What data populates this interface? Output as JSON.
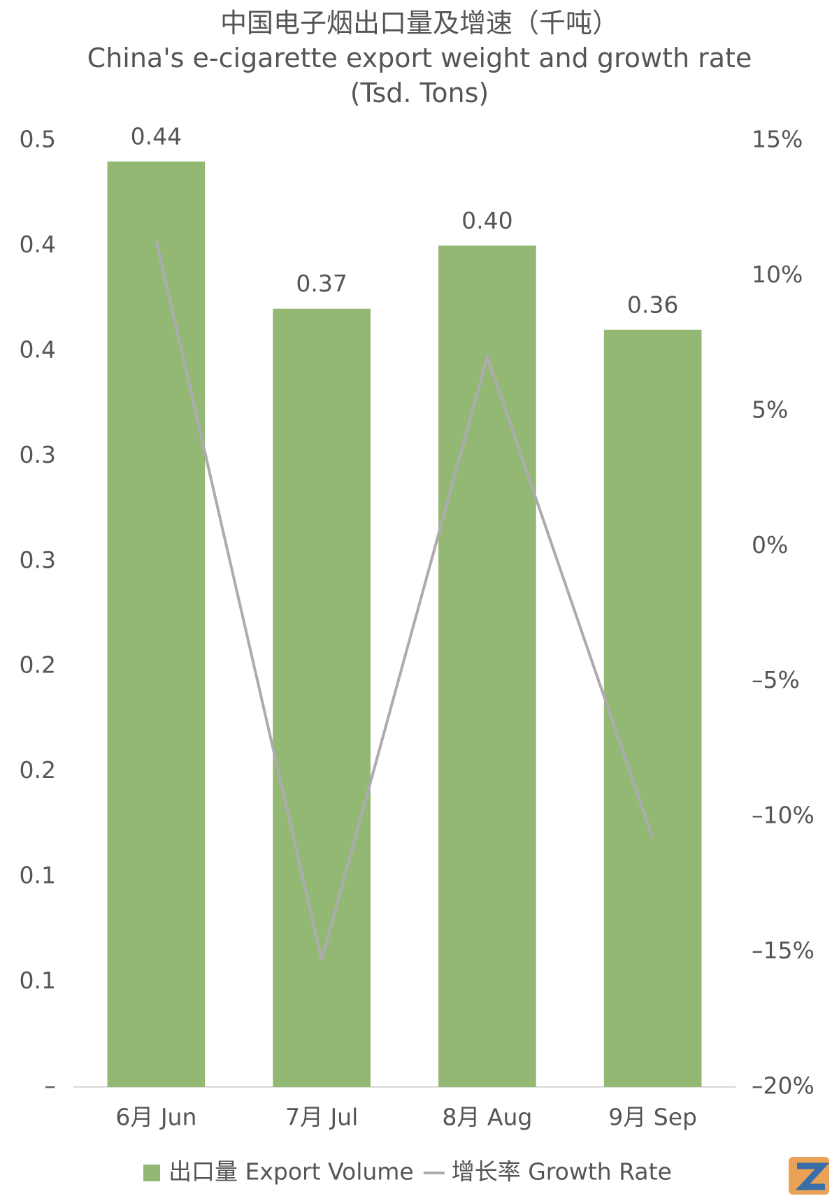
{
  "chart_data": {
    "type": "bar",
    "title": "中国电子烟出口量及增速（千吨）",
    "subtitle": "China's e-cigarette export weight and growth rate (Tsd. Tons)",
    "categories": [
      "6月 Jun",
      "7月 Jul",
      "8月 Aug",
      "9月 Sep"
    ],
    "series": [
      {
        "name": "出口量 Export Volume",
        "type": "bar",
        "color": "#93b874",
        "values": [
          0.44,
          0.37,
          0.4,
          0.36
        ],
        "value_labels": [
          "0.44",
          "0.37",
          "0.40",
          "0.36"
        ]
      },
      {
        "name": "增长率 Growth Rate",
        "type": "line",
        "axis": "y2",
        "color": "#aeaaaf",
        "values": [
          11.3,
          -15.3,
          7.0,
          -10.8
        ]
      }
    ],
    "ylim": [
      0,
      0.45
    ],
    "yticks": [
      {
        "value": 0,
        "label": "–"
      },
      {
        "value": 0.05,
        "label": "0.1"
      },
      {
        "value": 0.1,
        "label": "0.1"
      },
      {
        "value": 0.15,
        "label": "0.2"
      },
      {
        "value": 0.2,
        "label": "0.2"
      },
      {
        "value": 0.25,
        "label": "0.3"
      },
      {
        "value": 0.3,
        "label": "0.3"
      },
      {
        "value": 0.35,
        "label": "0.4"
      },
      {
        "value": 0.4,
        "label": "0.4"
      },
      {
        "value": 0.45,
        "label": "0.5"
      }
    ],
    "y2lim": [
      -20,
      15
    ],
    "y2ticks": [
      {
        "value": -20,
        "label": "–20%"
      },
      {
        "value": -15,
        "label": "–15%"
      },
      {
        "value": -10,
        "label": "–10%"
      },
      {
        "value": -5,
        "label": "–5%"
      },
      {
        "value": 0,
        "label": "0%"
      },
      {
        "value": 5,
        "label": "5%"
      },
      {
        "value": 10,
        "label": "10%"
      },
      {
        "value": 15,
        "label": "15%"
      }
    ],
    "legend": "bottom"
  }
}
